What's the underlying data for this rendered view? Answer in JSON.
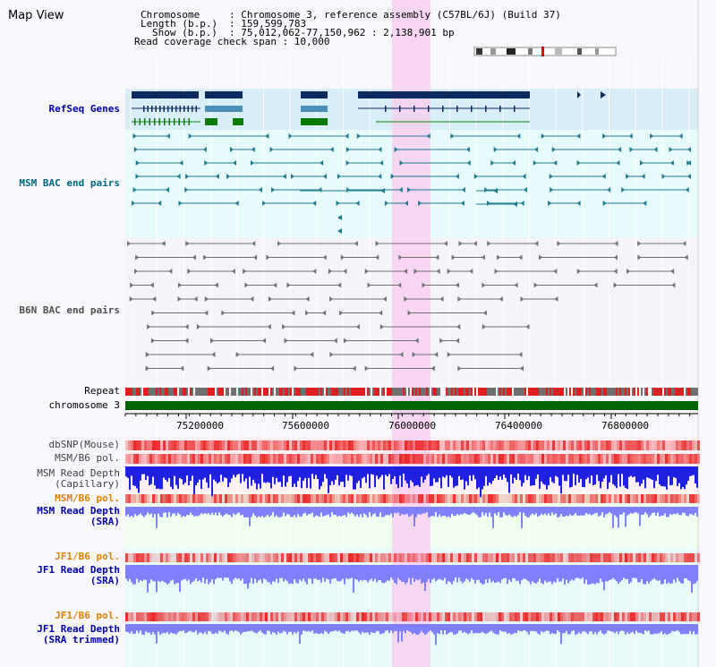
{
  "title": "Map View",
  "header": {
    "chromosome_key": "Chromosome",
    "chromosome_val": ": Chromosome 3, reference assembly (C57BL/6J) (Build 37)",
    "length_key": "Length (b.p.)",
    "length_val": ": 159,599,783",
    "show_key": "Show (b.p.)",
    "show_val": ": 75,012,062-77,150,962 : 2,138,901 bp",
    "coverage": "Read coverage check span : 10,000"
  },
  "tracks": {
    "refseq": "RefSeq Genes",
    "msm_bac": "MSM BAC end pairs",
    "b6n_bac": "B6N BAC end pairs",
    "repeat": "Repeat",
    "chromosome": "chromosome 3",
    "dbsnp": "dbSNP(Mouse)",
    "msm_b6_pol_1": "MSM/B6 pol.",
    "msm_depth_cap_1": "MSM Read Depth",
    "msm_depth_cap_2": "(Capillary)",
    "msm_b6_pol_2": "MSM/B6 pol.",
    "msm_depth_sra_1": "MSM Read Depth",
    "msm_depth_sra_2": "(SRA)",
    "jf1_b6_pol_1": "JF1/B6 pol.",
    "jf1_depth_sra_1": "JF1 Read Depth",
    "jf1_depth_sra_2": "(SRA)",
    "jf1_b6_pol_2": "JF1/B6 pol.",
    "jf1_depth_trim_1": "JF1 Read Depth",
    "jf1_depth_trim_2": "(SRA trimmed)"
  },
  "axis_ticks": [
    "75200000",
    "75600000",
    "76000000",
    "76400000",
    "76800000"
  ],
  "colors": {
    "refseq_dark": "#0d2b60",
    "refseq_mid": "#4a8fb8",
    "refseq_green": "#0a7a0a",
    "msm_line": "#1f7a90",
    "b6n_line": "#707070",
    "highlight": "#f7d0f0",
    "chromosome": "#006400",
    "depth_blue": "#2020e0",
    "depth_light": "#8080ff"
  }
}
